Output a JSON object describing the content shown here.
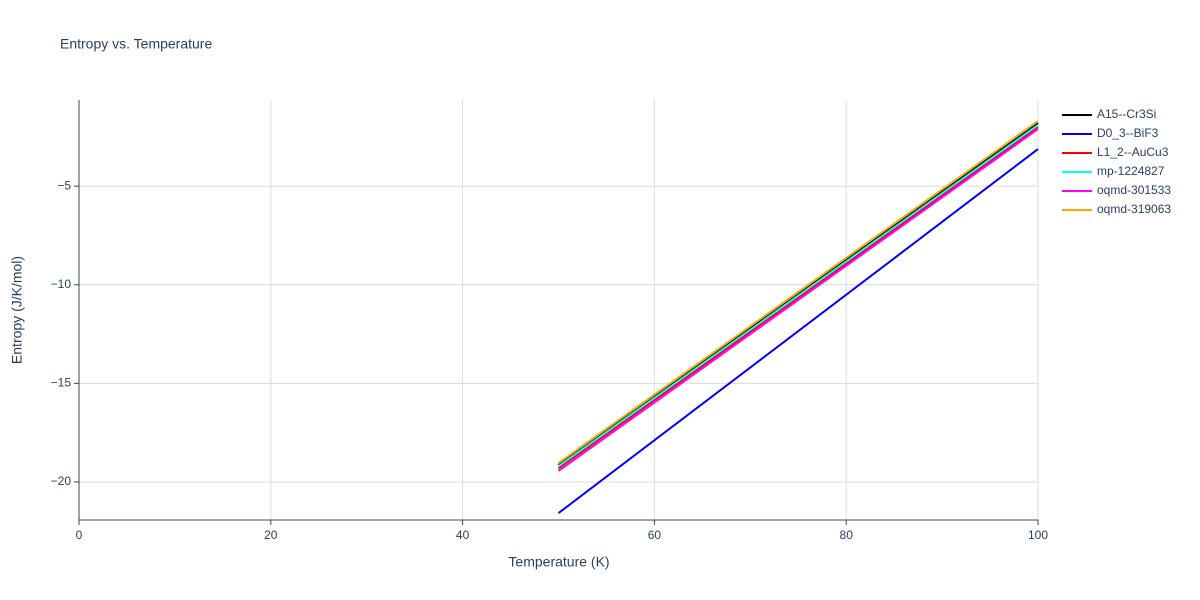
{
  "chart_data": {
    "type": "line",
    "title": "Entropy vs. Temperature",
    "x_label": "Temperature (K)",
    "y_label": "Entropy (J/K/mol)",
    "xlim": [
      0,
      100
    ],
    "ylim": [
      -21.93,
      -0.63
    ],
    "xticks": [
      0,
      20,
      40,
      60,
      80,
      100
    ],
    "yticks": [
      {
        "value": -5,
        "label": "−5"
      },
      {
        "value": -10,
        "label": "−10"
      },
      {
        "value": -15,
        "label": "−15"
      },
      {
        "value": -20,
        "label": "−20"
      }
    ],
    "grid": true,
    "legend": "right",
    "x": [
      50,
      100
    ],
    "series": [
      {
        "name": "A15--Cr3Si",
        "color": "#000000",
        "values": [
          -19.14,
          -1.8
        ]
      },
      {
        "name": "D0_3--BiF3",
        "color": "#0000ff",
        "values": [
          -21.58,
          -3.12
        ]
      },
      {
        "name": "L1_2--AuCu3",
        "color": "#ff0000",
        "values": [
          -19.31,
          -2.0
        ]
      },
      {
        "name": "mp-1224827",
        "color": "#00ffff",
        "values": [
          -19.2,
          -1.9
        ]
      },
      {
        "name": "oqmd-301533",
        "color": "#ff00ff",
        "values": [
          -19.44,
          -2.1
        ]
      },
      {
        "name": "oqmd-319063",
        "color": "#ffa500",
        "values": [
          -19.04,
          -1.7
        ]
      }
    ]
  }
}
